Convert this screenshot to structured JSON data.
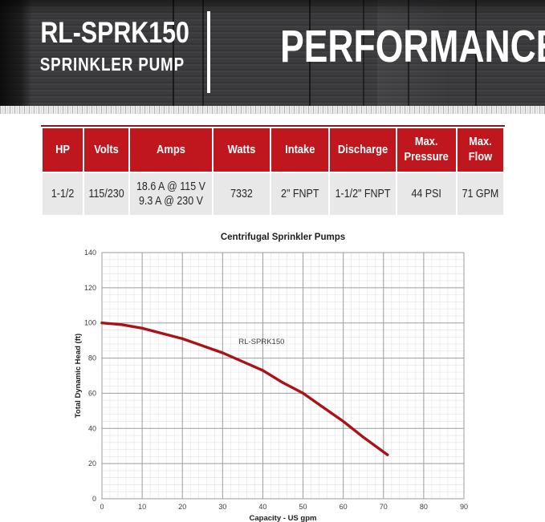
{
  "header": {
    "model": "RL-SPRK150",
    "subtitle": "SPRINKLER PUMP",
    "title": "PERFORMANCE"
  },
  "spec_table": {
    "columns": [
      {
        "header": "HP",
        "value": "1-1/2"
      },
      {
        "header": "Volts",
        "value": "115/230"
      },
      {
        "header": "Amps",
        "value": "18.6 A @ 115 V\n9.3 A @ 230 V"
      },
      {
        "header": "Watts",
        "value": "7332"
      },
      {
        "header": "Intake",
        "value": "2\" FNPT"
      },
      {
        "header": "Discharge",
        "value": "1-1/2\" FNPT"
      },
      {
        "header": "Max.\nPressure",
        "value": "44 PSI"
      },
      {
        "header": "Max.\nFlow",
        "value": "71 GPM"
      }
    ]
  },
  "colors": {
    "table_header_bg": "#c0161d",
    "table_body_bg": "#e8e8e8",
    "curve": "#ab1217",
    "major_grid": "#9b9b9b",
    "minor_grid": "#e0e2e5",
    "banner_bg": "#3b3b3d",
    "banner_text": "#ffffff"
  },
  "chart_data": {
    "type": "line",
    "title": "Centrifugal Sprinkler Pumps",
    "xlabel": "Capacity - US gpm",
    "ylabel": "Total Dynamic Head (ft)",
    "xlim": [
      0,
      90
    ],
    "ylim": [
      0,
      140
    ],
    "x_major_step": 10,
    "y_major_step": 20,
    "x_minor_step": 2,
    "y_minor_step": 4,
    "grid": true,
    "legend": "inline-curve-label",
    "series": [
      {
        "name": "RL-SPRK150",
        "color": "#ab1217",
        "x": [
          0,
          5,
          10,
          15,
          20,
          25,
          30,
          35,
          40,
          45,
          50,
          55,
          60,
          65,
          71
        ],
        "y": [
          100,
          99,
          97,
          94,
          91,
          87,
          83,
          78,
          73,
          66,
          60,
          52,
          44,
          35,
          25
        ],
        "label_pos": {
          "x": 34,
          "y": 88
        }
      }
    ]
  }
}
